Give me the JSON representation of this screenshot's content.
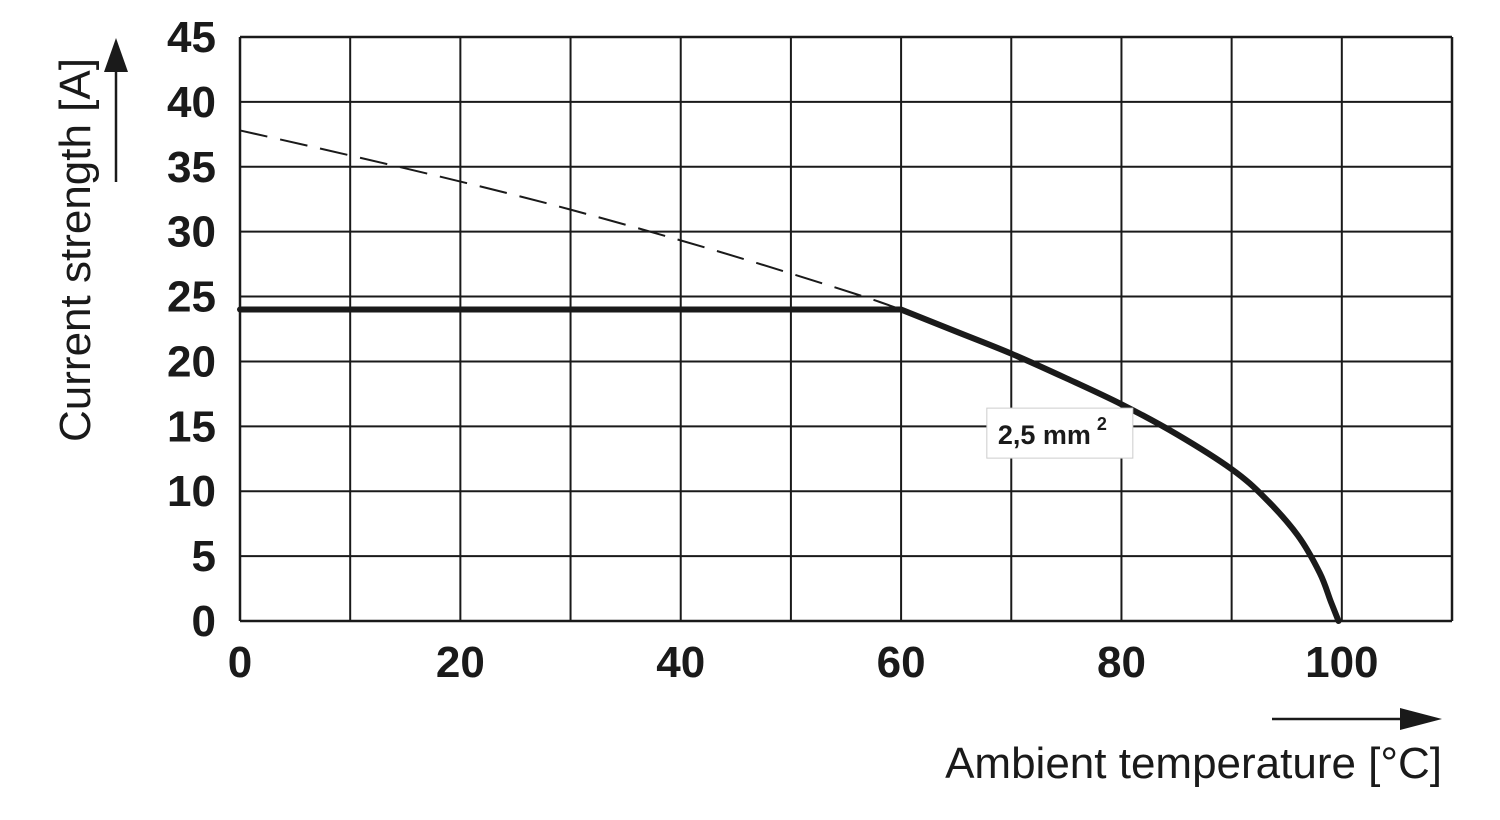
{
  "chart_data": {
    "type": "line",
    "title": "",
    "xlabel": "Ambient temperature [°C]",
    "ylabel": "Current strength [A]",
    "xlim": [
      0,
      110
    ],
    "ylim": [
      0,
      45
    ],
    "x_major_ticks": [
      0,
      20,
      40,
      60,
      80,
      100
    ],
    "x_tick_labels": [
      "0",
      "20",
      "40",
      "60",
      "80",
      "100"
    ],
    "x_grid_step": 10,
    "y_ticks": [
      0,
      5,
      10,
      15,
      20,
      25,
      30,
      35,
      40,
      45
    ],
    "y_tick_labels": [
      "0",
      "5",
      "10",
      "15",
      "20",
      "25",
      "30",
      "35",
      "40",
      "45"
    ],
    "grid": true,
    "series": [
      {
        "name": "2,5 mm²",
        "style": "solid-thick",
        "x": [
          0,
          60,
          65,
          70,
          75,
          80,
          85,
          90,
          93,
          96,
          98,
          99,
          99.7
        ],
        "y": [
          24,
          24,
          22.3,
          20.6,
          18.7,
          16.7,
          14.4,
          11.7,
          9.5,
          6.6,
          3.7,
          1.5,
          0
        ]
      },
      {
        "name": "",
        "style": "dashed-thin",
        "x": [
          0,
          20,
          40,
          56,
          60
        ],
        "y": [
          37.8,
          34.0,
          29.4,
          25.2,
          24.0
        ]
      }
    ],
    "annotation": {
      "text": "2,5 mm",
      "superscript": "2",
      "x": 73.5,
      "y": 14.4
    }
  },
  "colors": {
    "line": "#1a1a1a",
    "grid": "#1a1a1a",
    "background": "#ffffff"
  }
}
